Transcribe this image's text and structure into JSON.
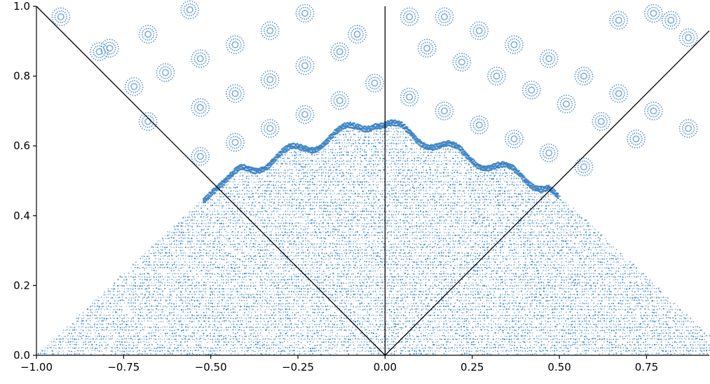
{
  "chart_data": {
    "type": "scatter",
    "title": "",
    "xlabel": "",
    "ylabel": "",
    "xlim": [
      -1.0,
      0.93
    ],
    "ylim": [
      0.0,
      1.0
    ],
    "x_ticks": [
      -1.0,
      -0.75,
      -0.5,
      -0.25,
      0.0,
      0.25,
      0.5,
      0.75
    ],
    "x_tick_labels": [
      "−1.00",
      "−0.75",
      "−0.50",
      "−0.25",
      "0.00",
      "0.25",
      "0.50",
      "0.75"
    ],
    "y_ticks": [
      0.0,
      0.2,
      0.4,
      0.6,
      0.8,
      1.0
    ],
    "y_tick_labels": [
      "0.0",
      "0.2",
      "0.4",
      "0.6",
      "0.8",
      "1.0"
    ],
    "grid": false,
    "legend": "none",
    "marker_color": "#2f7bbf",
    "line_color": "#000000",
    "lines": [
      {
        "x": [
          -1.0,
          0.0
        ],
        "y": [
          1.0,
          0.0
        ]
      },
      {
        "x": [
          0.0,
          0.0
        ],
        "y": [
          0.0,
          1.0
        ]
      },
      {
        "x": [
          0.0,
          0.93
        ],
        "y": [
          0.0,
          0.93
        ]
      }
    ],
    "point_region": {
      "base_y": 0.0,
      "base_x_range": [
        -1.0,
        0.93
      ],
      "flat_top_y": 0.47,
      "peak_x": -0.03,
      "peak_y": 0.68
    },
    "rosette_centers": [
      [
        -0.93,
        0.97
      ],
      [
        -0.79,
        0.88
      ],
      [
        -0.68,
        0.92
      ],
      [
        -0.56,
        0.99
      ],
      [
        -0.82,
        0.87
      ],
      [
        -0.72,
        0.77
      ],
      [
        -0.63,
        0.81
      ],
      [
        -0.53,
        0.85
      ],
      [
        -0.43,
        0.89
      ],
      [
        -0.33,
        0.93
      ],
      [
        -0.23,
        0.98
      ],
      [
        -0.08,
        0.92
      ],
      [
        -0.68,
        0.67
      ],
      [
        -0.53,
        0.71
      ],
      [
        -0.43,
        0.75
      ],
      [
        -0.33,
        0.79
      ],
      [
        -0.23,
        0.83
      ],
      [
        -0.13,
        0.87
      ],
      [
        -0.03,
        0.78
      ],
      [
        -0.53,
        0.57
      ],
      [
        -0.43,
        0.61
      ],
      [
        -0.33,
        0.65
      ],
      [
        -0.23,
        0.69
      ],
      [
        -0.13,
        0.73
      ],
      [
        0.07,
        0.97
      ],
      [
        0.17,
        0.97
      ],
      [
        0.27,
        0.93
      ],
      [
        0.37,
        0.89
      ],
      [
        0.47,
        0.85
      ],
      [
        0.57,
        0.8
      ],
      [
        0.67,
        0.75
      ],
      [
        0.77,
        0.7
      ],
      [
        0.87,
        0.65
      ],
      [
        0.12,
        0.88
      ],
      [
        0.22,
        0.84
      ],
      [
        0.32,
        0.8
      ],
      [
        0.42,
        0.76
      ],
      [
        0.52,
        0.72
      ],
      [
        0.62,
        0.67
      ],
      [
        0.72,
        0.62
      ],
      [
        0.17,
        0.7
      ],
      [
        0.27,
        0.66
      ],
      [
        0.37,
        0.62
      ],
      [
        0.47,
        0.58
      ],
      [
        0.57,
        0.54
      ],
      [
        0.07,
        0.74
      ],
      [
        0.77,
        0.98
      ],
      [
        0.67,
        0.96
      ],
      [
        0.87,
        0.91
      ],
      [
        0.82,
        0.96
      ]
    ]
  }
}
